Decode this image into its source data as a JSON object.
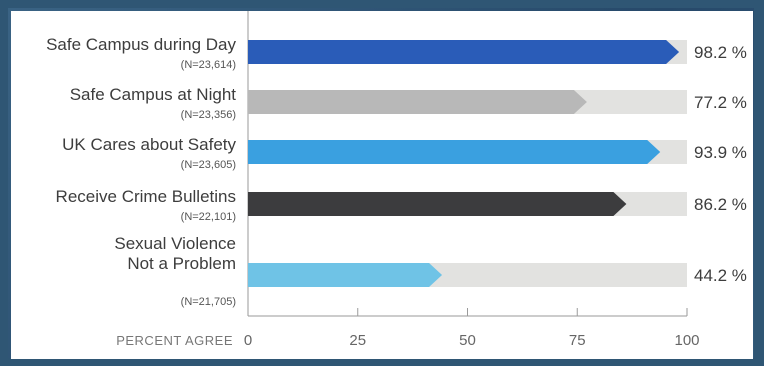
{
  "chart_data": {
    "type": "bar",
    "orientation": "horizontal",
    "categories": [
      {
        "label": "Safe Campus during Day",
        "n_label": "(N=23,614)"
      },
      {
        "label": "Safe Campus at Night",
        "n_label": "(N=23,356)"
      },
      {
        "label": "UK Cares about Safety",
        "n_label": "(N=23,605)"
      },
      {
        "label": "Receive Crime Bulletins",
        "n_label": "(N=22,101)"
      },
      {
        "label": "Sexual Violence Not a Problem",
        "label_lines": [
          "Sexual Violence",
          "Not a Problem"
        ],
        "n_label": "(N=21,705)"
      }
    ],
    "values": [
      98.2,
      77.2,
      93.9,
      86.2,
      44.2
    ],
    "value_labels": [
      "98.2 %",
      "77.2 %",
      "93.9 %",
      "86.2 %",
      "44.2 %"
    ],
    "colors": [
      "#2a5cb8",
      "#b8b8b8",
      "#3aa0e0",
      "#3c3c3e",
      "#6fc3e6"
    ],
    "track_color": "#e2e2e0",
    "xlabel": "PERCENT AGREE",
    "xlim": [
      0,
      100
    ],
    "ticks": [
      0,
      25,
      50,
      75,
      100
    ],
    "tick_labels": [
      "0",
      "25",
      "50",
      "75",
      "100"
    ],
    "grid": false
  }
}
